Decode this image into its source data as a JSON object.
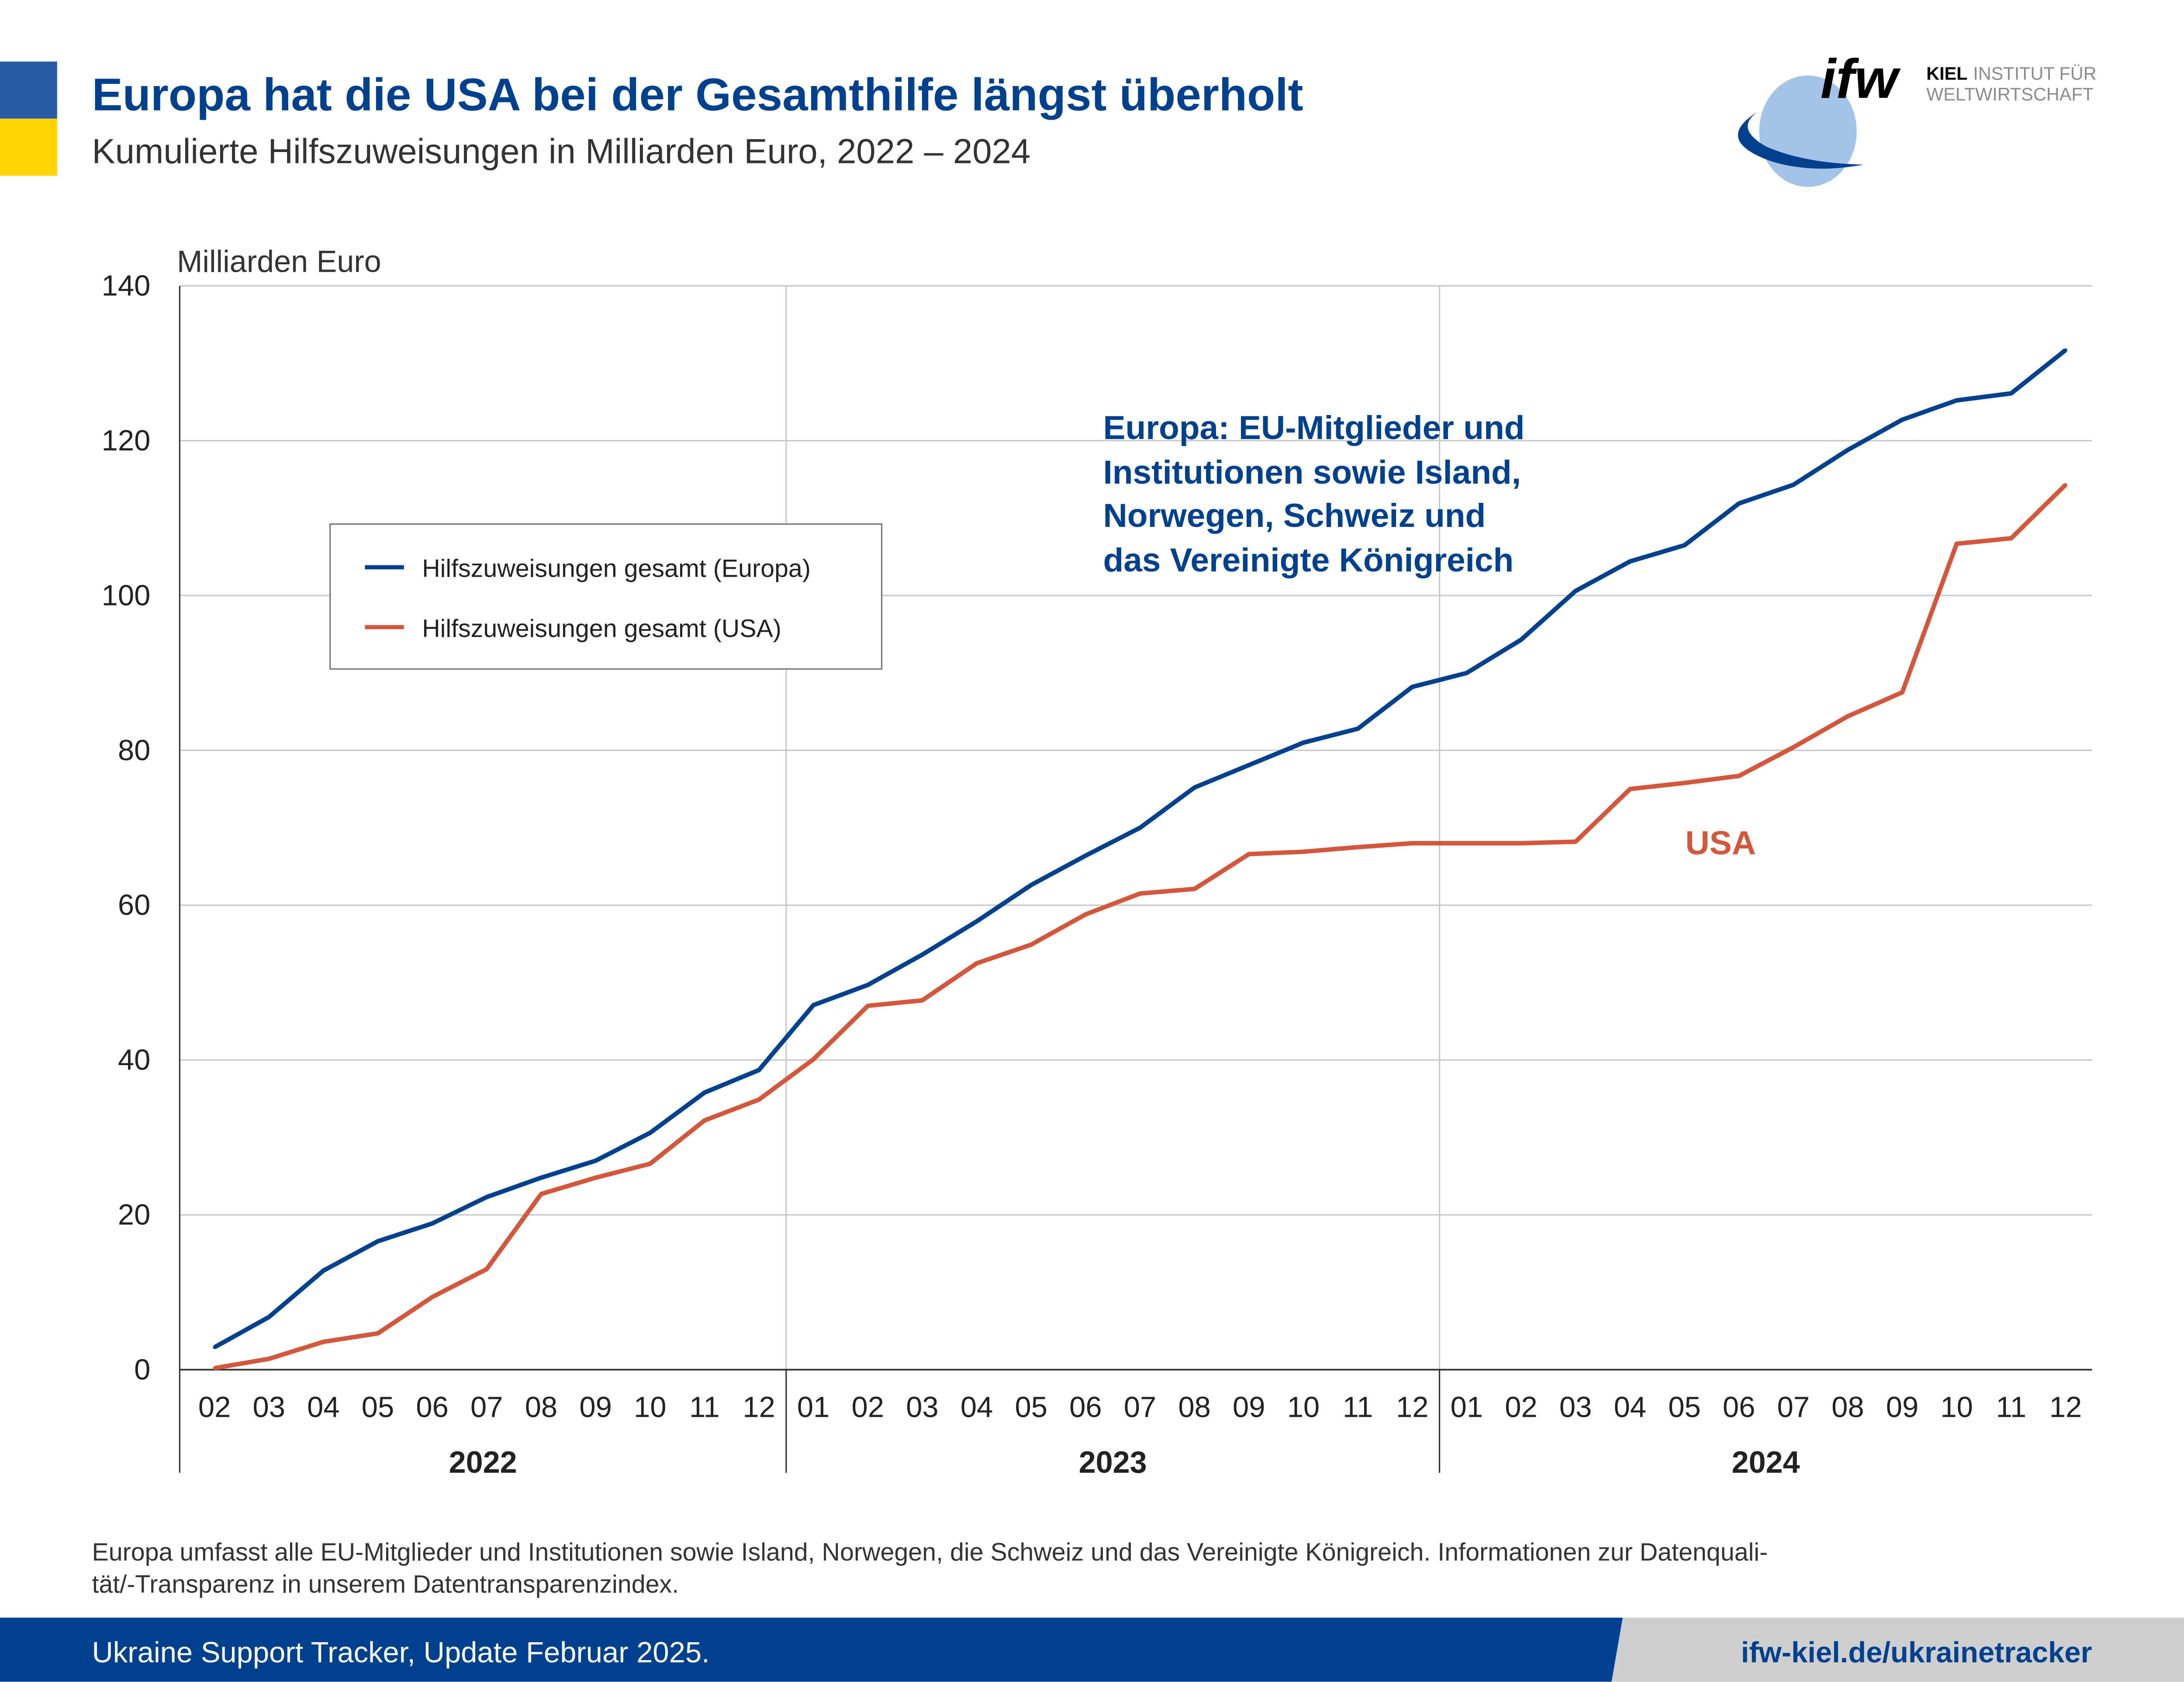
{
  "header": {
    "title": "Europa hat die USA bei der Gesamthilfe längst überholt",
    "subtitle": "Kumulierte Hilfszuweisungen in Milliarden Euro, 2022 – 2024",
    "flag_colors": [
      "#2a5ba7",
      "#ffd500"
    ]
  },
  "logo": {
    "mark": "ifw",
    "line1_bold": "KIEL",
    "line1": "INSTITUT FÜR",
    "line2": "WELTWIRTSCHAFT"
  },
  "chart_data": {
    "type": "line",
    "ylabel": "Milliarden Euro",
    "ylim": [
      0,
      140
    ],
    "yticks": [
      0,
      20,
      40,
      60,
      80,
      100,
      120,
      140
    ],
    "grid": true,
    "x": [
      "02",
      "03",
      "04",
      "05",
      "06",
      "07",
      "08",
      "09",
      "10",
      "11",
      "12",
      "01",
      "02",
      "03",
      "04",
      "05",
      "06",
      "07",
      "08",
      "09",
      "10",
      "11",
      "12",
      "01",
      "02",
      "03",
      "04",
      "05",
      "06",
      "07",
      "08",
      "09",
      "10",
      "11",
      "12"
    ],
    "years": [
      {
        "label": "2022",
        "from": 0,
        "to": 10
      },
      {
        "label": "2023",
        "from": 11,
        "to": 22
      },
      {
        "label": "2024",
        "from": 23,
        "to": 34
      }
    ],
    "series": [
      {
        "name": "Hilfszuweisungen gesamt (Europa)",
        "color": "#00418f",
        "values": [
          2.9,
          6.8,
          12.8,
          16.6,
          18.9,
          22.3,
          24.8,
          27.0,
          30.6,
          35.8,
          38.7,
          47.1,
          49.7,
          53.6,
          57.9,
          62.6,
          66.4,
          70.0,
          75.2,
          78.1,
          81.0,
          82.8,
          88.2,
          90.0,
          94.3,
          100.6,
          104.4,
          106.5,
          111.9,
          114.3,
          118.8,
          122.7,
          125.2,
          126.1,
          131.7
        ]
      },
      {
        "name": "Hilfszuweisungen gesamt (USA)",
        "color": "#d4573b",
        "values": [
          0.2,
          1.4,
          3.6,
          4.7,
          9.4,
          13.0,
          22.7,
          24.8,
          26.6,
          32.2,
          34.9,
          40.1,
          47.0,
          47.7,
          52.5,
          54.9,
          58.8,
          61.5,
          62.1,
          66.6,
          66.9,
          67.5,
          68.0,
          68.0,
          68.0,
          68.2,
          75.0,
          75.8,
          76.7,
          80.4,
          84.4,
          87.5,
          106.7,
          107.4,
          114.3
        ]
      }
    ],
    "legend_placement": "upper-left",
    "annotations": [
      {
        "lines": [
          "Europa: EU-Mitglieder und",
          "Institutionen sowie Island,",
          "Norwegen, Schweiz und",
          "das Vereinigte Königreich"
        ],
        "color": "#00418f"
      },
      {
        "lines": [
          "USA"
        ],
        "color": "#d4573b"
      }
    ]
  },
  "note": {
    "line1": "Europa umfasst alle EU-Mitglieder und Institutionen sowie Island, Norwegen, die Schweiz und das Vereinigte Königreich. Informationen zur Datenquali-",
    "line2": "tät/-Transparenz in unserem Datentransparenzindex."
  },
  "footer": {
    "source": "Ukraine Support Tracker, Update Februar 2025.",
    "link": "ifw-kiel.de/ukrainetracker"
  }
}
